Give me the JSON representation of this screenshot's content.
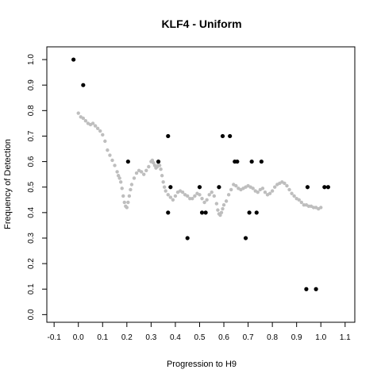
{
  "chart_data": {
    "type": "scatter",
    "title": "KLF4 - Uniform",
    "xlabel": "Progression to H9",
    "ylabel": "Frequency of Detection",
    "xlim": [
      -0.13,
      1.14
    ],
    "ylim": [
      -0.03,
      1.05
    ],
    "x_ticks": [
      "-0.1",
      "0.0",
      "0.1",
      "0.2",
      "0.3",
      "0.4",
      "0.5",
      "0.6",
      "0.7",
      "0.8",
      "0.9",
      "1.0",
      "1.1"
    ],
    "y_ticks": [
      "0.0",
      "0.1",
      "0.2",
      "0.3",
      "0.4",
      "0.5",
      "0.6",
      "0.7",
      "0.8",
      "0.9",
      "1.0"
    ],
    "colors": {
      "observed": "#000000",
      "smoothed": "#bebebe",
      "frame": "#000000"
    },
    "series": [
      {
        "points": [
          [
            -0.02,
            1.0
          ],
          [
            0.02,
            0.9
          ],
          [
            0.205,
            0.6
          ],
          [
            0.33,
            0.6
          ],
          [
            0.37,
            0.7
          ],
          [
            0.37,
            0.4
          ],
          [
            0.38,
            0.5
          ],
          [
            0.45,
            0.3
          ],
          [
            0.5,
            0.5
          ],
          [
            0.51,
            0.4
          ],
          [
            0.525,
            0.4
          ],
          [
            0.58,
            0.5
          ],
          [
            0.595,
            0.7
          ],
          [
            0.625,
            0.7
          ],
          [
            0.645,
            0.6
          ],
          [
            0.655,
            0.6
          ],
          [
            0.69,
            0.3
          ],
          [
            0.705,
            0.4
          ],
          [
            0.715,
            0.6
          ],
          [
            0.735,
            0.4
          ],
          [
            0.755,
            0.6
          ],
          [
            0.94,
            0.1
          ],
          [
            0.945,
            0.5
          ],
          [
            0.98,
            0.1
          ],
          [
            1.015,
            0.5
          ],
          [
            1.03,
            0.5
          ]
        ]
      },
      {
        "points": [
          [
            0.0,
            0.79
          ],
          [
            0.01,
            0.775
          ],
          [
            0.02,
            0.77
          ],
          [
            0.03,
            0.76
          ],
          [
            0.04,
            0.75
          ],
          [
            0.05,
            0.745
          ],
          [
            0.06,
            0.75
          ],
          [
            0.07,
            0.74
          ],
          [
            0.08,
            0.73
          ],
          [
            0.09,
            0.72
          ],
          [
            0.1,
            0.705
          ],
          [
            0.11,
            0.68
          ],
          [
            0.12,
            0.645
          ],
          [
            0.13,
            0.625
          ],
          [
            0.14,
            0.605
          ],
          [
            0.15,
            0.585
          ],
          [
            0.16,
            0.56
          ],
          [
            0.165,
            0.545
          ],
          [
            0.17,
            0.535
          ],
          [
            0.175,
            0.52
          ],
          [
            0.18,
            0.495
          ],
          [
            0.185,
            0.465
          ],
          [
            0.19,
            0.44
          ],
          [
            0.195,
            0.425
          ],
          [
            0.2,
            0.42
          ],
          [
            0.205,
            0.44
          ],
          [
            0.21,
            0.465
          ],
          [
            0.215,
            0.49
          ],
          [
            0.22,
            0.51
          ],
          [
            0.23,
            0.535
          ],
          [
            0.24,
            0.555
          ],
          [
            0.25,
            0.565
          ],
          [
            0.26,
            0.56
          ],
          [
            0.27,
            0.55
          ],
          [
            0.28,
            0.565
          ],
          [
            0.29,
            0.58
          ],
          [
            0.3,
            0.6
          ],
          [
            0.305,
            0.605
          ],
          [
            0.31,
            0.595
          ],
          [
            0.315,
            0.585
          ],
          [
            0.32,
            0.575
          ],
          [
            0.325,
            0.58
          ],
          [
            0.33,
            0.59
          ],
          [
            0.335,
            0.585
          ],
          [
            0.34,
            0.57
          ],
          [
            0.345,
            0.545
          ],
          [
            0.35,
            0.52
          ],
          [
            0.355,
            0.5
          ],
          [
            0.36,
            0.485
          ],
          [
            0.37,
            0.47
          ],
          [
            0.38,
            0.46
          ],
          [
            0.39,
            0.45
          ],
          [
            0.4,
            0.465
          ],
          [
            0.41,
            0.48
          ],
          [
            0.42,
            0.485
          ],
          [
            0.43,
            0.48
          ],
          [
            0.44,
            0.47
          ],
          [
            0.45,
            0.465
          ],
          [
            0.46,
            0.455
          ],
          [
            0.47,
            0.455
          ],
          [
            0.48,
            0.465
          ],
          [
            0.49,
            0.475
          ],
          [
            0.5,
            0.47
          ],
          [
            0.51,
            0.455
          ],
          [
            0.52,
            0.44
          ],
          [
            0.53,
            0.45
          ],
          [
            0.54,
            0.47
          ],
          [
            0.55,
            0.48
          ],
          [
            0.56,
            0.465
          ],
          [
            0.57,
            0.435
          ],
          [
            0.575,
            0.41
          ],
          [
            0.58,
            0.395
          ],
          [
            0.585,
            0.39
          ],
          [
            0.59,
            0.4
          ],
          [
            0.595,
            0.415
          ],
          [
            0.6,
            0.43
          ],
          [
            0.61,
            0.445
          ],
          [
            0.62,
            0.47
          ],
          [
            0.63,
            0.49
          ],
          [
            0.64,
            0.51
          ],
          [
            0.65,
            0.505
          ],
          [
            0.66,
            0.495
          ],
          [
            0.67,
            0.49
          ],
          [
            0.68,
            0.495
          ],
          [
            0.69,
            0.5
          ],
          [
            0.7,
            0.505
          ],
          [
            0.71,
            0.5
          ],
          [
            0.72,
            0.495
          ],
          [
            0.73,
            0.485
          ],
          [
            0.74,
            0.48
          ],
          [
            0.75,
            0.49
          ],
          [
            0.76,
            0.495
          ],
          [
            0.77,
            0.48
          ],
          [
            0.78,
            0.47
          ],
          [
            0.79,
            0.475
          ],
          [
            0.8,
            0.485
          ],
          [
            0.81,
            0.5
          ],
          [
            0.82,
            0.51
          ],
          [
            0.83,
            0.515
          ],
          [
            0.84,
            0.52
          ],
          [
            0.85,
            0.515
          ],
          [
            0.86,
            0.505
          ],
          [
            0.87,
            0.49
          ],
          [
            0.88,
            0.475
          ],
          [
            0.89,
            0.465
          ],
          [
            0.9,
            0.455
          ],
          [
            0.91,
            0.45
          ],
          [
            0.92,
            0.44
          ],
          [
            0.93,
            0.43
          ],
          [
            0.94,
            0.43
          ],
          [
            0.95,
            0.425
          ],
          [
            0.96,
            0.425
          ],
          [
            0.97,
            0.42
          ],
          [
            0.98,
            0.42
          ],
          [
            0.99,
            0.415
          ],
          [
            1.0,
            0.42
          ]
        ]
      }
    ]
  }
}
